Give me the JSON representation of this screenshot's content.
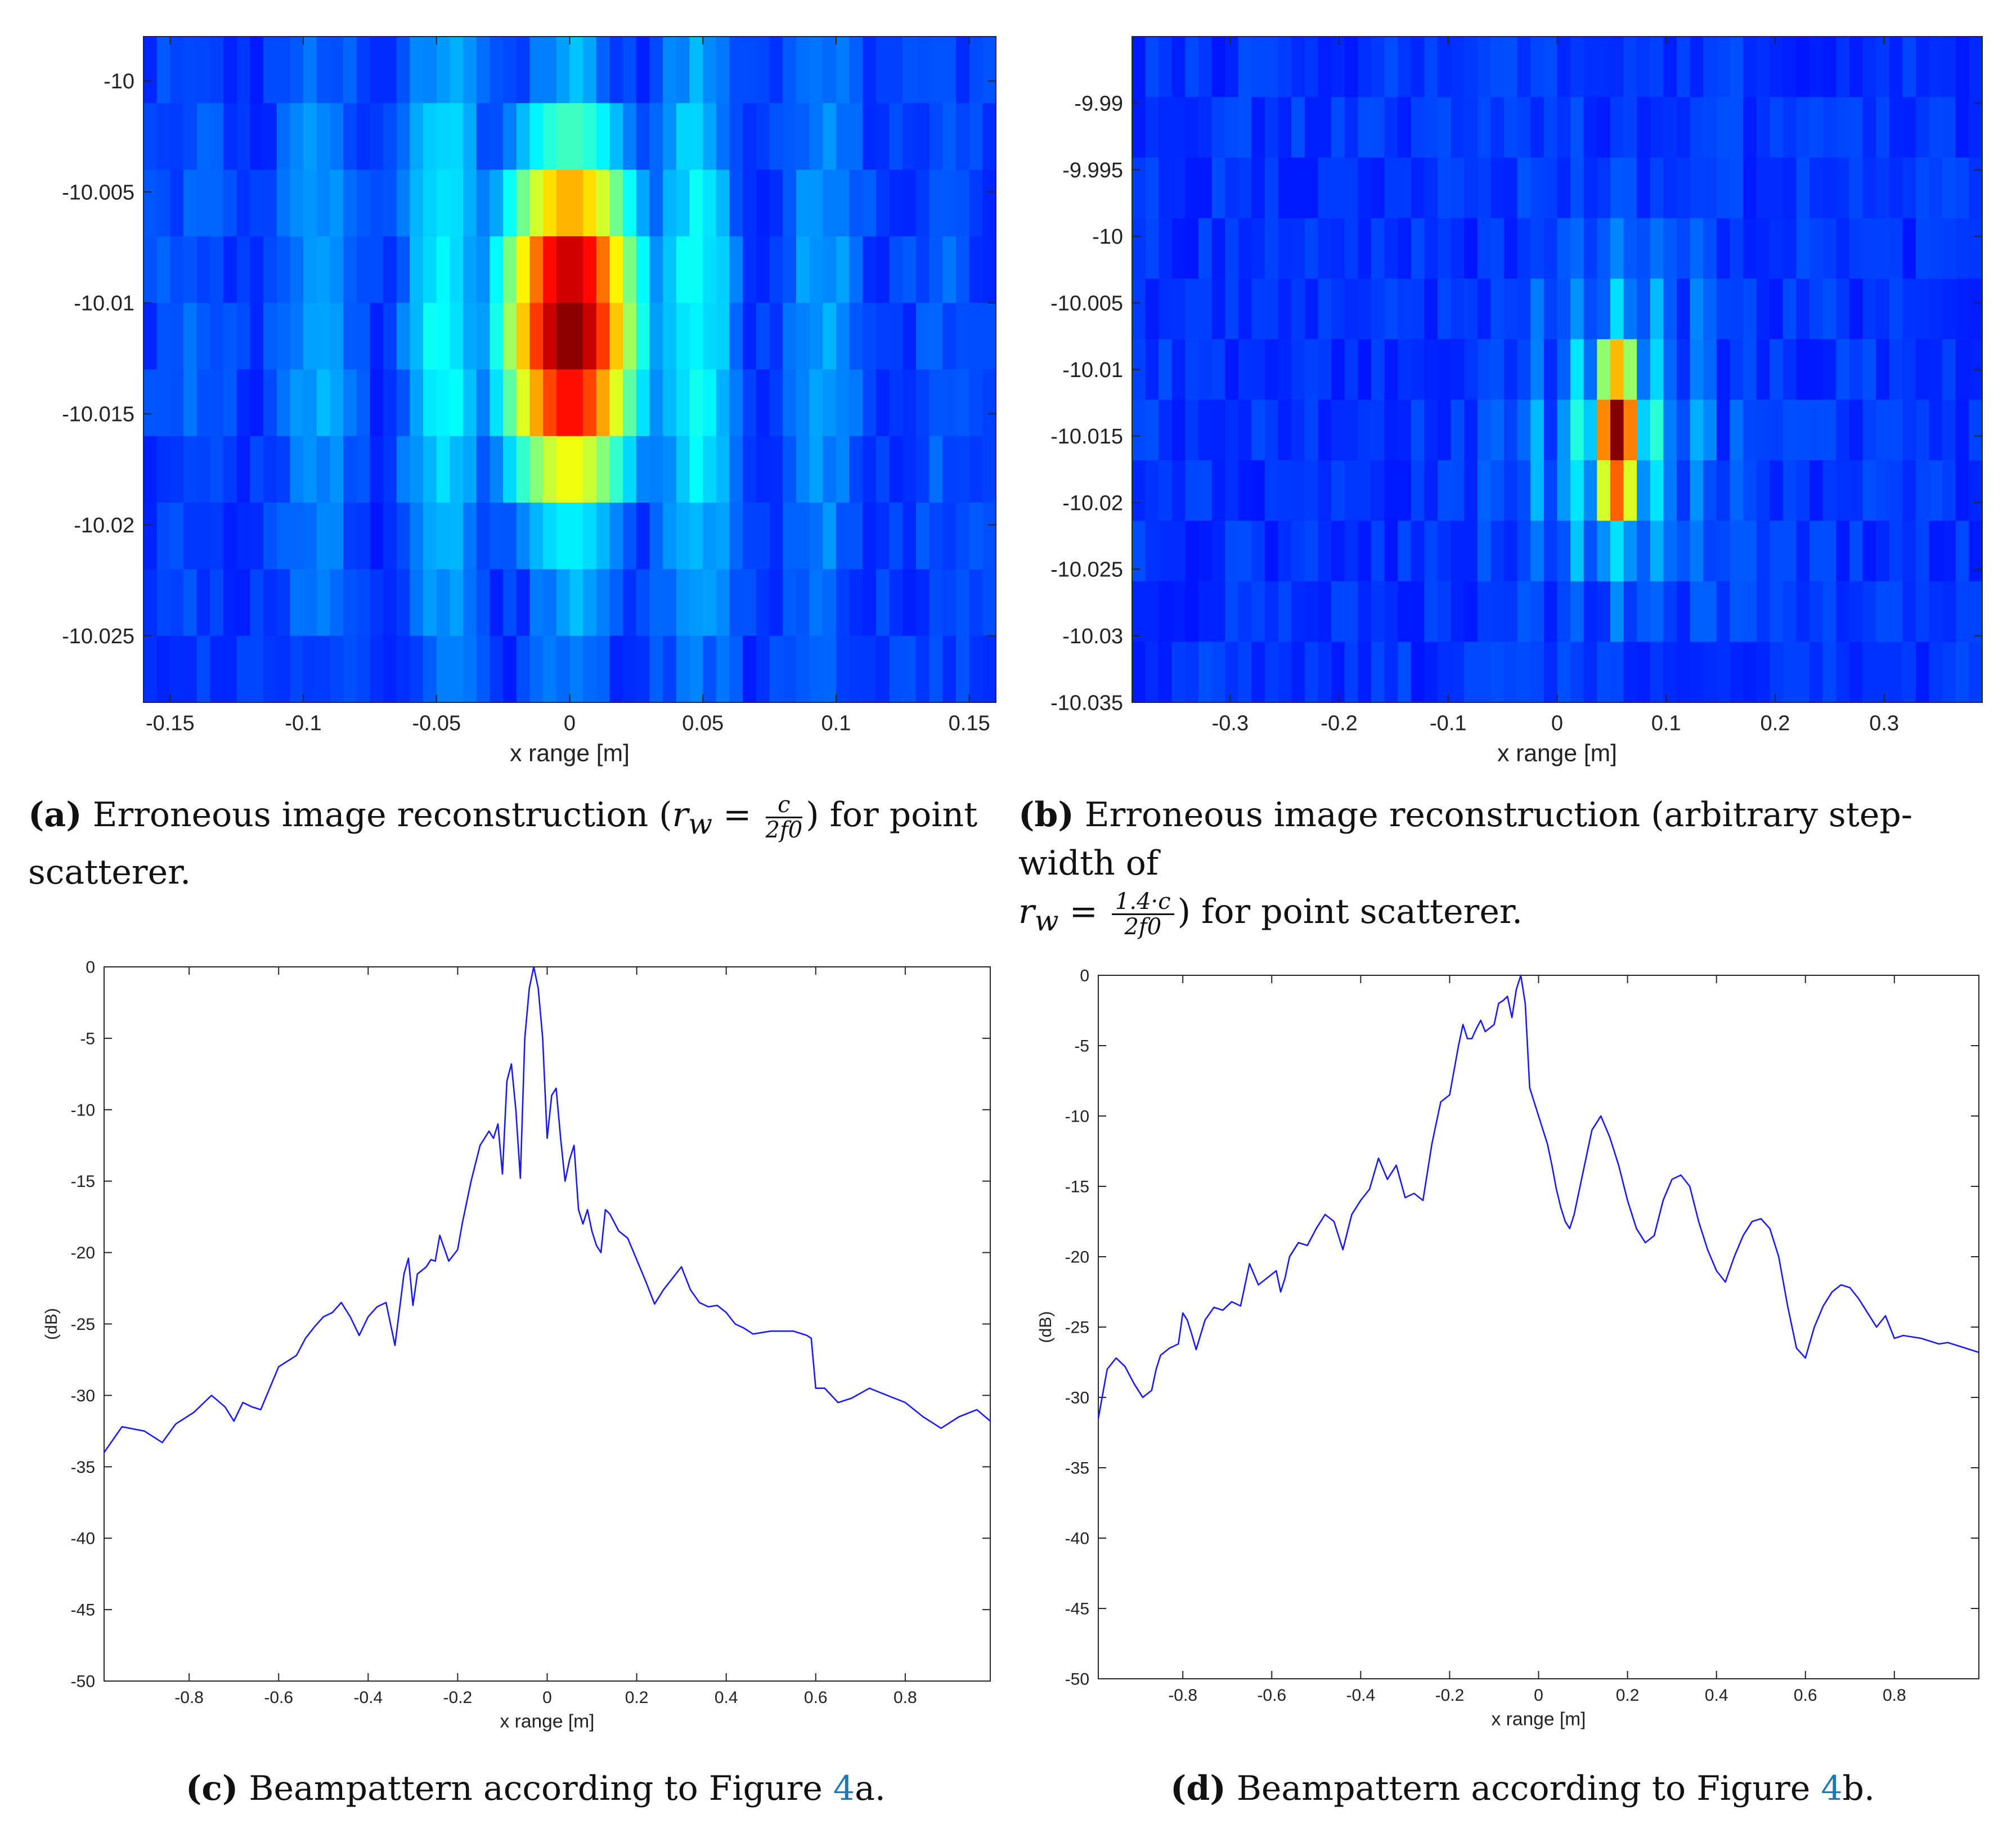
{
  "colors": {
    "line": "#1a1aee",
    "axis": "#262626",
    "link": "#1f77b4"
  },
  "chart_data": [
    {
      "id": "a",
      "type": "heatmap",
      "title": "",
      "xlabel": "x range [m]",
      "ylabel": "",
      "xlim": [
        -0.16,
        0.16
      ],
      "ylim": [
        -10.028,
        -9.998
      ],
      "xticks": [
        -0.15,
        -0.1,
        -0.05,
        0,
        0.05,
        0.1,
        0.15
      ],
      "xtick_labels": [
        "-0.15",
        "-0.1",
        "-0.05",
        "0",
        "0.05",
        "0.1",
        "0.15"
      ],
      "yticks": [
        -10,
        -10.005,
        -10.01,
        -10.015,
        -10.02,
        -10.025
      ],
      "ytick_labels": [
        "-10",
        "-10.005",
        "-10.01",
        "-10.015",
        "-10.02",
        "-10.025"
      ],
      "colormap": "jet",
      "peak": {
        "x": 0.0,
        "y": -10.011,
        "sx": 0.015,
        "sy": 0.0045
      }
    },
    {
      "id": "b",
      "type": "heatmap",
      "title": "",
      "xlabel": "x range [m]",
      "ylabel": "",
      "xlim": [
        -0.39,
        0.39
      ],
      "ylim": [
        -10.035,
        -9.985
      ],
      "xticks": [
        -0.3,
        -0.2,
        -0.1,
        0,
        0.1,
        0.2,
        0.3
      ],
      "xtick_labels": [
        "-0.3",
        "-0.2",
        "-0.1",
        "0",
        "0.1",
        "0.2",
        "0.3"
      ],
      "yticks": [
        -9.99,
        -9.995,
        -10,
        -10.005,
        -10.01,
        -10.015,
        -10.02,
        -10.025,
        -10.03,
        -10.035
      ],
      "ytick_labels": [
        "-9.99",
        "-9.995",
        "-10",
        "-10.005",
        "-10.01",
        "-10.015",
        "-10.02",
        "-10.025",
        "-10.03",
        "-10.035"
      ],
      "colormap": "jet",
      "peak": {
        "x": 0.055,
        "y": -10.015,
        "sx": 0.012,
        "sy": 0.004
      }
    },
    {
      "id": "c",
      "type": "line",
      "title": "",
      "xlabel": "x range [m]",
      "ylabel": "(dB)",
      "xlim": [
        -0.99,
        0.99
      ],
      "ylim": [
        -50,
        0
      ],
      "xticks": [
        -0.8,
        -0.6,
        -0.4,
        -0.2,
        0,
        0.2,
        0.4,
        0.6,
        0.8
      ],
      "xtick_labels": [
        "-0.8",
        "-0.6",
        "-0.4",
        "-0.2",
        "0",
        "0.2",
        "0.4",
        "0.6",
        "0.8"
      ],
      "yticks": [
        0,
        -5,
        -10,
        -15,
        -20,
        -25,
        -30,
        -35,
        -40,
        -45,
        -50
      ],
      "ytick_labels": [
        "0",
        "-5",
        "-10",
        "-15",
        "-20",
        "-25",
        "-30",
        "-35",
        "-40",
        "-45",
        "-50"
      ],
      "series": [
        {
          "name": "beampattern",
          "x": [
            -0.99,
            -0.95,
            -0.9,
            -0.86,
            -0.83,
            -0.79,
            -0.75,
            -0.72,
            -0.7,
            -0.68,
            -0.66,
            -0.64,
            -0.62,
            -0.6,
            -0.58,
            -0.56,
            -0.54,
            -0.52,
            -0.5,
            -0.48,
            -0.46,
            -0.44,
            -0.42,
            -0.4,
            -0.38,
            -0.36,
            -0.34,
            -0.32,
            -0.31,
            -0.3,
            -0.29,
            -0.27,
            -0.26,
            -0.25,
            -0.24,
            -0.22,
            -0.2,
            -0.19,
            -0.18,
            -0.17,
            -0.15,
            -0.13,
            -0.12,
            -0.11,
            -0.1,
            -0.09,
            -0.08,
            -0.07,
            -0.06,
            -0.05,
            -0.04,
            -0.03,
            -0.02,
            -0.01,
            0.0,
            0.01,
            0.02,
            0.03,
            0.04,
            0.05,
            0.06,
            0.07,
            0.08,
            0.09,
            0.1,
            0.11,
            0.12,
            0.13,
            0.14,
            0.16,
            0.18,
            0.2,
            0.22,
            0.24,
            0.26,
            0.28,
            0.3,
            0.32,
            0.34,
            0.36,
            0.38,
            0.4,
            0.42,
            0.44,
            0.46,
            0.5,
            0.55,
            0.58,
            0.59,
            0.6,
            0.62,
            0.65,
            0.68,
            0.72,
            0.76,
            0.8,
            0.84,
            0.88,
            0.92,
            0.96,
            0.99
          ],
          "y": [
            -34,
            -32.2,
            -32.5,
            -33.3,
            -32.0,
            -31.2,
            -30.0,
            -30.8,
            -31.8,
            -30.5,
            -30.8,
            -31.0,
            -29.5,
            -28.0,
            -27.6,
            -27.2,
            -26.0,
            -25.2,
            -24.5,
            -24.2,
            -23.5,
            -24.5,
            -25.8,
            -24.5,
            -23.8,
            -23.5,
            -26.5,
            -21.5,
            -20.4,
            -23.7,
            -21.5,
            -21.0,
            -20.5,
            -20.6,
            -18.8,
            -20.6,
            -19.8,
            -18.0,
            -16.5,
            -15.0,
            -12.5,
            -11.5,
            -12.0,
            -11.0,
            -14.5,
            -8.0,
            -6.8,
            -10.0,
            -14.8,
            -5.0,
            -1.5,
            0.0,
            -1.5,
            -5.0,
            -12.0,
            -9.0,
            -8.5,
            -12.0,
            -15.0,
            -13.5,
            -12.5,
            -17.0,
            -18.0,
            -17.0,
            -18.5,
            -19.5,
            -20.0,
            -17.0,
            -17.3,
            -18.5,
            -19.0,
            -20.5,
            -22.0,
            -23.6,
            -22.6,
            -21.8,
            -21.0,
            -22.6,
            -23.5,
            -23.8,
            -23.7,
            -24.2,
            -25.0,
            -25.3,
            -25.7,
            -25.5,
            -25.5,
            -25.8,
            -26.0,
            -29.5,
            -29.5,
            -30.5,
            -30.2,
            -29.5,
            -30.0,
            -30.5,
            -31.5,
            -32.3,
            -31.5,
            -31.0,
            -31.8
          ]
        }
      ]
    },
    {
      "id": "d",
      "type": "line",
      "title": "",
      "xlabel": "x range [m]",
      "ylabel": "(dB)",
      "xlim": [
        -0.99,
        0.99
      ],
      "ylim": [
        -50,
        0
      ],
      "xticks": [
        -0.8,
        -0.6,
        -0.4,
        -0.2,
        0,
        0.2,
        0.4,
        0.6,
        0.8
      ],
      "xtick_labels": [
        "-0.8",
        "-0.6",
        "-0.4",
        "-0.2",
        "0",
        "0.2",
        "0.4",
        "0.6",
        "0.8"
      ],
      "yticks": [
        0,
        -5,
        -10,
        -15,
        -20,
        -25,
        -30,
        -35,
        -40,
        -45,
        -50
      ],
      "ytick_labels": [
        "0",
        "-5",
        "-10",
        "-15",
        "-20",
        "-25",
        "-30",
        "-35",
        "-40",
        "-45",
        "-50"
      ],
      "series": [
        {
          "name": "beampattern",
          "x": [
            -0.99,
            -0.97,
            -0.95,
            -0.93,
            -0.91,
            -0.89,
            -0.87,
            -0.86,
            -0.85,
            -0.83,
            -0.81,
            -0.8,
            -0.79,
            -0.78,
            -0.77,
            -0.75,
            -0.73,
            -0.71,
            -0.69,
            -0.67,
            -0.65,
            -0.63,
            -0.61,
            -0.59,
            -0.58,
            -0.57,
            -0.56,
            -0.54,
            -0.52,
            -0.5,
            -0.48,
            -0.46,
            -0.44,
            -0.42,
            -0.4,
            -0.38,
            -0.36,
            -0.34,
            -0.32,
            -0.3,
            -0.28,
            -0.26,
            -0.24,
            -0.22,
            -0.2,
            -0.18,
            -0.17,
            -0.16,
            -0.15,
            -0.14,
            -0.13,
            -0.12,
            -0.1,
            -0.09,
            -0.08,
            -0.07,
            -0.06,
            -0.05,
            -0.04,
            -0.03,
            -0.02,
            -0.01,
            0.0,
            0.01,
            0.02,
            0.03,
            0.04,
            0.05,
            0.06,
            0.07,
            0.08,
            0.1,
            0.12,
            0.14,
            0.16,
            0.18,
            0.2,
            0.22,
            0.24,
            0.26,
            0.28,
            0.3,
            0.32,
            0.34,
            0.36,
            0.38,
            0.4,
            0.42,
            0.44,
            0.46,
            0.48,
            0.5,
            0.52,
            0.54,
            0.56,
            0.58,
            0.6,
            0.62,
            0.64,
            0.66,
            0.68,
            0.7,
            0.72,
            0.74,
            0.76,
            0.78,
            0.8,
            0.82,
            0.84,
            0.86,
            0.88,
            0.9,
            0.92,
            0.94,
            0.96,
            0.99
          ],
          "y": [
            -31.5,
            -28.0,
            -27.2,
            -27.8,
            -29.0,
            -30.0,
            -29.5,
            -28.0,
            -27.0,
            -26.5,
            -26.2,
            -24.0,
            -24.5,
            -25.5,
            -26.6,
            -24.5,
            -23.6,
            -23.8,
            -23.2,
            -23.5,
            -20.5,
            -22.0,
            -21.5,
            -21.0,
            -22.5,
            -21.5,
            -20.0,
            -19.0,
            -19.2,
            -18.0,
            -17.0,
            -17.5,
            -19.5,
            -17.0,
            -16.0,
            -15.2,
            -13.0,
            -14.5,
            -13.5,
            -15.8,
            -15.5,
            -16.0,
            -12.0,
            -9.0,
            -8.5,
            -5.0,
            -3.5,
            -4.5,
            -4.5,
            -3.8,
            -3.2,
            -4.0,
            -3.5,
            -2.0,
            -1.8,
            -1.5,
            -3.0,
            -1.0,
            0.0,
            -2.0,
            -8.0,
            -9.0,
            -10.0,
            -11.0,
            -12.0,
            -13.5,
            -15.2,
            -16.5,
            -17.5,
            -18.0,
            -17.0,
            -14.0,
            -11.0,
            -10.0,
            -11.5,
            -13.5,
            -16.0,
            -18.0,
            -19.0,
            -18.5,
            -16.0,
            -14.5,
            -14.2,
            -15.0,
            -17.5,
            -19.5,
            -21.0,
            -21.8,
            -20.0,
            -18.5,
            -17.5,
            -17.3,
            -18.0,
            -20.0,
            -23.5,
            -26.5,
            -27.2,
            -25.0,
            -23.5,
            -22.5,
            -22.0,
            -22.2,
            -23.0,
            -24.0,
            -25.0,
            -24.2,
            -25.8,
            -25.6,
            -25.7,
            -25.8,
            -26.0,
            -26.2,
            -26.1,
            -26.3,
            -26.5,
            -26.8
          ]
        }
      ]
    }
  ],
  "captions": {
    "a_label": "(a)",
    "a_text1": "Erroneous image reconstruction (",
    "a_var": "r",
    "a_sub": "w",
    "a_eq": " = ",
    "a_num": "c",
    "a_den": "2f0",
    "a_text2": ") for point",
    "a_text3": "scatterer.",
    "b_label": "(b)",
    "b_text1": "Erroneous image reconstruction (arbitrary step-width of",
    "b_var": "r",
    "b_sub": "w",
    "b_eq": " = ",
    "b_num": "1.4·c",
    "b_den": "2f0",
    "b_text2": ") for point scatterer.",
    "c_label": "(c)",
    "c_text": "Beampattern according to Figure",
    "c_ref": "4",
    "c_suffix": "a.",
    "d_label": "(d)",
    "d_text": "Beampattern according to Figure",
    "d_ref": "4",
    "d_suffix": "b."
  }
}
